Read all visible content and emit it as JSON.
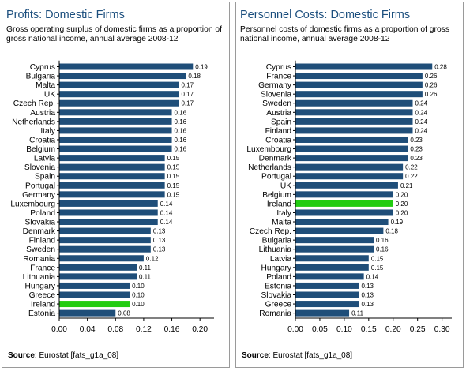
{
  "chart_data": [
    {
      "type": "bar",
      "orientation": "horizontal",
      "title": "Profits: Domestic Firms",
      "subtitle": "Gross operating surplus of domestic firms as a proportion of gross national income, annual average 2008-12",
      "categories": [
        "Cyprus",
        "Bulgaria",
        "Malta",
        "UK",
        "Czech Rep.",
        "Austria",
        "Netherlands",
        "Italy",
        "Croatia",
        "Belgium",
        "Latvia",
        "Slovenia",
        "Spain",
        "Portugal",
        "Germany",
        "Luxembourg",
        "Poland",
        "Slovakia",
        "Denmark",
        "Finland",
        "Sweden",
        "Romania",
        "France",
        "Lithuania",
        "Hungary",
        "Greece",
        "Ireland",
        "Estonia"
      ],
      "values": [
        0.19,
        0.18,
        0.17,
        0.17,
        0.17,
        0.16,
        0.16,
        0.16,
        0.16,
        0.16,
        0.15,
        0.15,
        0.15,
        0.15,
        0.15,
        0.14,
        0.14,
        0.14,
        0.13,
        0.13,
        0.13,
        0.12,
        0.11,
        0.11,
        0.1,
        0.1,
        0.1,
        0.08
      ],
      "value_labels": [
        "0.19",
        "0.18",
        "0.17",
        "0.17",
        "0.17",
        "0.16",
        "0.16",
        "0.16",
        "0.16",
        "0.16",
        "0.15",
        "0.15",
        "0.15",
        "0.15",
        "0.15",
        "0.14",
        "0.14",
        "0.14",
        "0.13",
        "0.13",
        "0.13",
        "0.12",
        "0.11",
        "0.11",
        "0.10",
        "0.10",
        "0.10",
        "0.08"
      ],
      "highlight": "Ireland",
      "xlim": [
        0,
        0.22
      ],
      "xticks": [
        0.0,
        0.04,
        0.08,
        0.12,
        0.16,
        0.2
      ],
      "xtick_labels": [
        "0.00",
        "0.04",
        "0.08",
        "0.12",
        "0.16",
        "0.20"
      ],
      "grid": false,
      "colors": {
        "bar": "#1f4e79",
        "highlight": "#22cc11"
      },
      "source_label": "Source",
      "source_text": ": Eurostat [fats_g1a_08]"
    },
    {
      "type": "bar",
      "orientation": "horizontal",
      "title": "Personnel Costs: Domestic Firms",
      "subtitle": "Personnel costs of domestic firms as a proportion of gross national income, annual average 2008-12",
      "categories": [
        "Cyprus",
        "France",
        "Germany",
        "Slovenia",
        "Sweden",
        "Austria",
        "Spain",
        "Finland",
        "Croatia",
        "Luxembourg",
        "Denmark",
        "Netherlands",
        "Portugal",
        "UK",
        "Belgium",
        "Ireland",
        "Italy",
        "Malta",
        "Czech Rep.",
        "Bulgaria",
        "Lithuania",
        "Latvia",
        "Hungary",
        "Poland",
        "Estonia",
        "Slovakia",
        "Greece",
        "Romania"
      ],
      "values": [
        0.28,
        0.26,
        0.26,
        0.26,
        0.24,
        0.24,
        0.24,
        0.24,
        0.23,
        0.23,
        0.23,
        0.22,
        0.22,
        0.21,
        0.2,
        0.2,
        0.2,
        0.19,
        0.18,
        0.16,
        0.16,
        0.15,
        0.15,
        0.14,
        0.13,
        0.13,
        0.13,
        0.11
      ],
      "value_labels": [
        "0.28",
        "0.26",
        "0.26",
        "0.26",
        "0.24",
        "0.24",
        "0.24",
        "0.24",
        "0.23",
        "0.23",
        "0.23",
        "0.22",
        "0.22",
        "0.21",
        "0.20",
        "0.20",
        "0.20",
        "0.19",
        "0.18",
        "0.16",
        "0.16",
        "0.15",
        "0.15",
        "0.14",
        "0.13",
        "0.13",
        "0.13",
        "0.11"
      ],
      "highlight": "Ireland",
      "xlim": [
        0,
        0.32
      ],
      "xticks": [
        0.0,
        0.05,
        0.1,
        0.15,
        0.2,
        0.25,
        0.3
      ],
      "xtick_labels": [
        "0.00",
        "0.05",
        "0.10",
        "0.15",
        "0.20",
        "0.25",
        "0.30"
      ],
      "grid": false,
      "colors": {
        "bar": "#1f4e79",
        "highlight": "#22cc11"
      },
      "source_label": "Source",
      "source_text": ": Eurostat [fats_g1a_08]"
    }
  ]
}
